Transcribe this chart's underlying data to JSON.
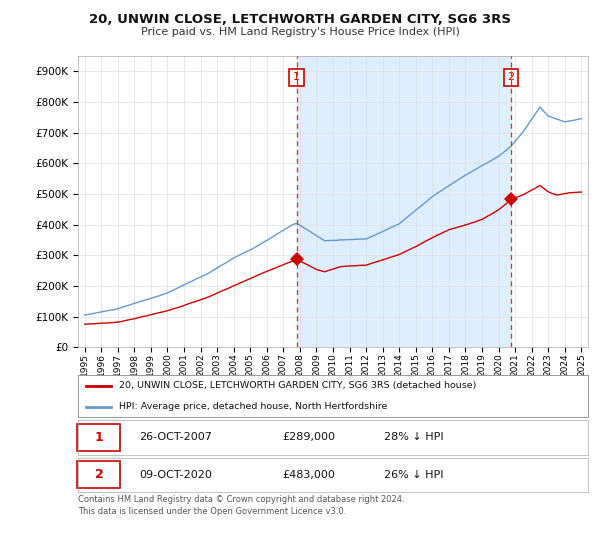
{
  "title": "20, UNWIN CLOSE, LETCHWORTH GARDEN CITY, SG6 3RS",
  "subtitle": "Price paid vs. HM Land Registry's House Price Index (HPI)",
  "ytick_values": [
    0,
    100000,
    200000,
    300000,
    400000,
    500000,
    600000,
    700000,
    800000,
    900000
  ],
  "ylim": [
    0,
    950000
  ],
  "xlim_left": 1994.6,
  "xlim_right": 2025.4,
  "sale1_x": 2007.8,
  "sale1_price": 289000,
  "sale2_x": 2020.75,
  "sale2_price": 483000,
  "legend_entry1": "20, UNWIN CLOSE, LETCHWORTH GARDEN CITY, SG6 3RS (detached house)",
  "legend_entry2": "HPI: Average price, detached house, North Hertfordshire",
  "table_row1": [
    "1",
    "26-OCT-2007",
    "£289,000",
    "28% ↓ HPI"
  ],
  "table_row2": [
    "2",
    "09-OCT-2020",
    "£483,000",
    "26% ↓ HPI"
  ],
  "footer": "Contains HM Land Registry data © Crown copyright and database right 2024.\nThis data is licensed under the Open Government Licence v3.0.",
  "line_color_red": "#cc0000",
  "line_color_blue": "#6699cc",
  "shade_color": "#ddeeff",
  "vline_color": "#cc3333",
  "grid_color": "#dddddd",
  "annotation_box_color": "#cc0000"
}
